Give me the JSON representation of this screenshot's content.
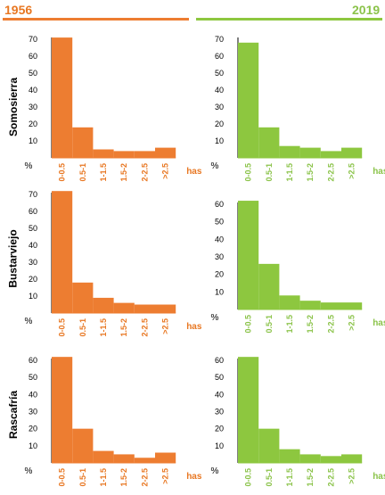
{
  "years": {
    "left": "1956",
    "right": "2019"
  },
  "colors": {
    "left": "#ED7D31",
    "right": "#8DC73F",
    "left_text": "#E87722",
    "right_text": "#8BC34A"
  },
  "rows": [
    "Somosierra",
    "Bustarviejo",
    "Rascafría"
  ],
  "chart_data": [
    {
      "type": "bar",
      "site": "Somosierra",
      "year": "1956",
      "categories": [
        "0-0.5",
        "0.5-1",
        "1-1.5",
        "1.5-2",
        "2-2.5",
        ">2.5"
      ],
      "values": [
        71,
        18,
        5,
        4,
        4,
        6
      ],
      "ylim": [
        0,
        70
      ],
      "yticks": [
        10,
        20,
        30,
        40,
        50,
        60,
        70
      ],
      "ylabel": "%",
      "xlabel": "has"
    },
    {
      "type": "bar",
      "site": "Somosierra",
      "year": "2019",
      "categories": [
        "0-0.5",
        "0.5-1",
        "1-1.5",
        "1.5-2",
        "2-2.5",
        ">2.5"
      ],
      "values": [
        68,
        18,
        7,
        6,
        4,
        6
      ],
      "ylim": [
        0,
        70
      ],
      "yticks": [
        10,
        20,
        30,
        40,
        50,
        60,
        70
      ],
      "ylabel": "%",
      "xlabel": "has"
    },
    {
      "type": "bar",
      "site": "Bustarviejo",
      "year": "1956",
      "categories": [
        "0-0.5",
        "0.5-1",
        "1-1.5",
        "1.5-2",
        "2-2.5",
        ">2.5"
      ],
      "values": [
        73,
        18,
        9,
        6,
        5,
        5
      ],
      "ylim": [
        0,
        70
      ],
      "yticks": [
        10,
        20,
        30,
        40,
        50,
        60,
        70
      ],
      "ylabel": "%",
      "xlabel": "has"
    },
    {
      "type": "bar",
      "site": "Bustarviejo",
      "year": "2019",
      "categories": [
        "0-0.5",
        "0.5-1",
        "1-1.5",
        "1.5-2",
        "2-2.5",
        ">2.5"
      ],
      "values": [
        65,
        26,
        8,
        5,
        4,
        4
      ],
      "ylim": [
        0,
        60
      ],
      "yticks": [
        10,
        20,
        30,
        40,
        50,
        60
      ],
      "ylabel": "%",
      "xlabel": "has"
    },
    {
      "type": "bar",
      "site": "Rascafría",
      "year": "1956",
      "categories": [
        "0-0.5",
        "0.5-1",
        "1-1.5",
        "1.5-2",
        "2-2.5",
        ">2.5"
      ],
      "values": [
        64,
        20,
        7,
        5,
        3,
        6
      ],
      "ylim": [
        0,
        60
      ],
      "yticks": [
        10,
        20,
        30,
        40,
        50,
        60
      ],
      "ylabel": "%",
      "xlabel": "has"
    },
    {
      "type": "bar",
      "site": "Rascafría",
      "year": "2019",
      "categories": [
        "0-0.5",
        "0.5-1",
        "1-1.5",
        "1.5-2",
        "2-2.5",
        ">2.5"
      ],
      "values": [
        62,
        20,
        8,
        5,
        4,
        5
      ],
      "ylim": [
        0,
        60
      ],
      "yticks": [
        10,
        20,
        30,
        40,
        50,
        60
      ],
      "ylabel": "%",
      "xlabel": "has"
    }
  ]
}
